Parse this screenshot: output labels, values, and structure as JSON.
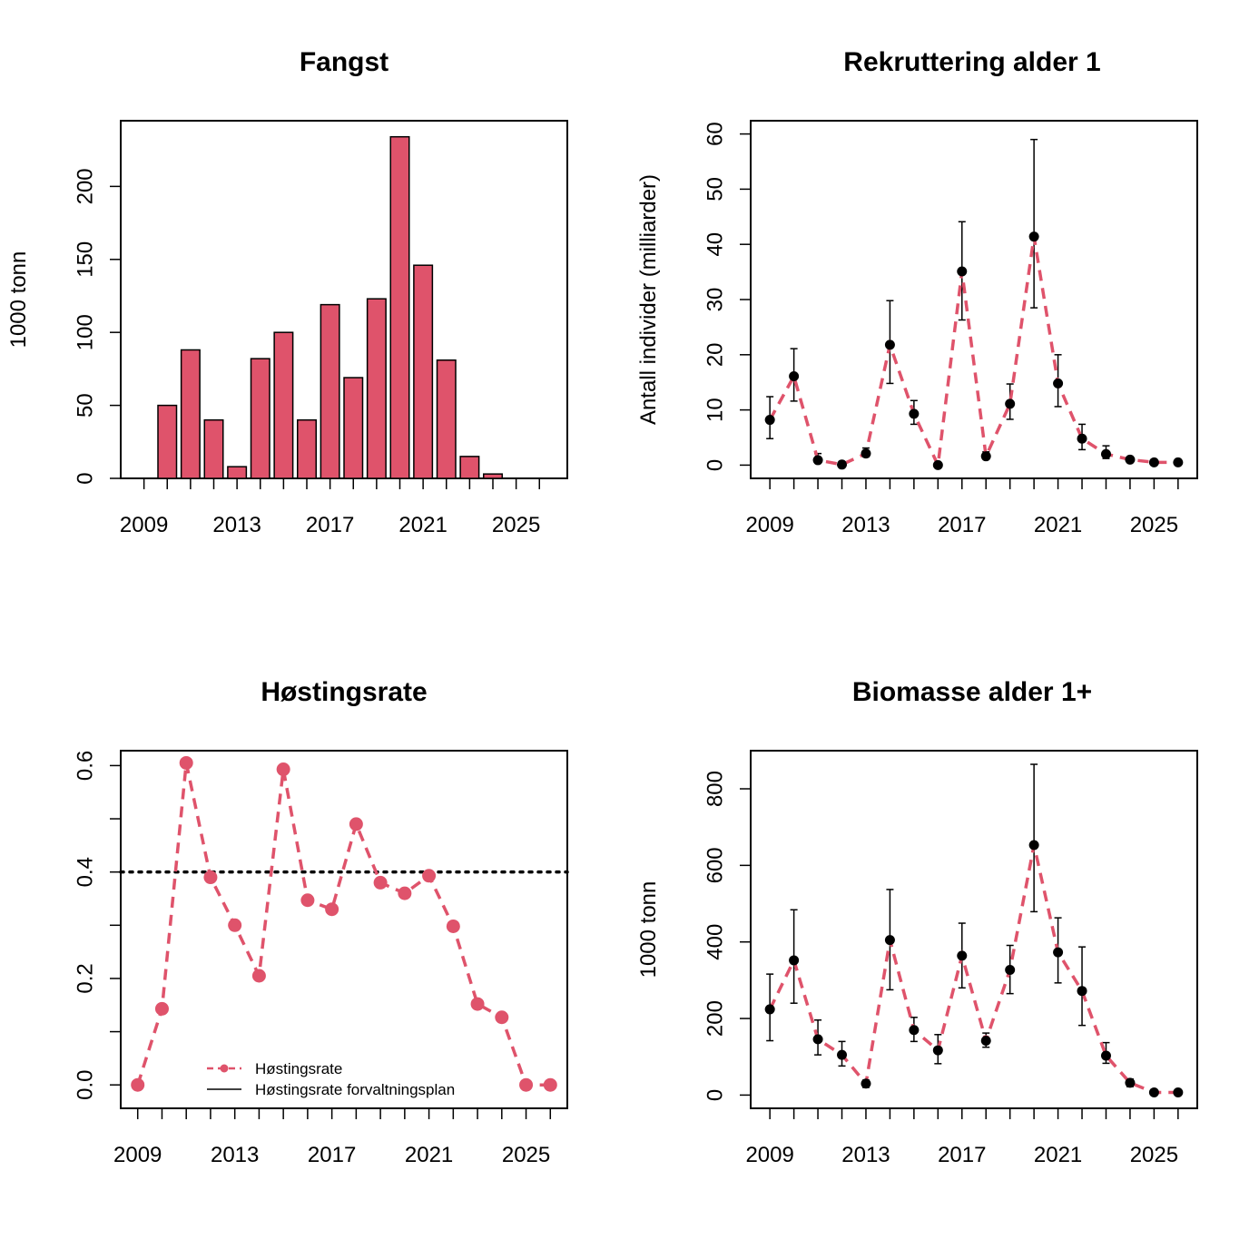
{
  "chart_data": [
    {
      "id": "fangst",
      "type": "bar",
      "title": "Fangst",
      "xlabel": "",
      "ylabel": "1000 tonn",
      "x": [
        2009,
        2010,
        2011,
        2012,
        2013,
        2014,
        2015,
        2016,
        2017,
        2018,
        2019,
        2020,
        2021,
        2022,
        2023,
        2024,
        2025,
        2026
      ],
      "values": [
        0,
        50,
        88,
        40,
        8,
        82,
        100,
        40,
        119,
        69,
        123,
        234,
        146,
        81,
        15,
        3,
        0,
        0
      ],
      "xlim": [
        2008.0,
        2027.2
      ],
      "ylim": [
        0,
        245
      ],
      "xticks": [
        "2009",
        "2013",
        "2017",
        "2021",
        "2025"
      ],
      "yticks": [
        "0",
        "50",
        "100",
        "150",
        "200"
      ],
      "bar_color": "#DF536B",
      "grid": false
    },
    {
      "id": "rekruttering",
      "type": "line",
      "title": "Rekruttering alder 1",
      "xlabel": "",
      "ylabel": "Antall individer (milliarder)",
      "x": [
        2009,
        2010,
        2011,
        2012,
        2013,
        2014,
        2015,
        2016,
        2017,
        2018,
        2019,
        2020,
        2021,
        2022,
        2023,
        2024,
        2025,
        2026
      ],
      "values": [
        8.2,
        16.1,
        0.9,
        0.1,
        2.1,
        21.8,
        9.3,
        0.0,
        35.1,
        1.6,
        11.1,
        41.4,
        14.8,
        4.8,
        2.0,
        1.0,
        0.5,
        0.5
      ],
      "lower": [
        4.8,
        11.6,
        0.5,
        0.0,
        1.5,
        14.8,
        7.4,
        0.0,
        26.3,
        1.1,
        8.3,
        28.5,
        10.6,
        2.8,
        1.2,
        0.7,
        0.3,
        0.3
      ],
      "upper": [
        12.4,
        21.1,
        2.1,
        0.3,
        3.1,
        29.8,
        11.7,
        0.1,
        44.1,
        2.4,
        14.7,
        59.0,
        20.0,
        7.4,
        3.5,
        1.5,
        0.8,
        0.8
      ],
      "xlim": [
        2008.2,
        2026.8
      ],
      "ylim": [
        -2.4,
        62.4
      ],
      "xticks": [
        "2009",
        "2013",
        "2017",
        "2021",
        "2025"
      ],
      "yticks": [
        "0",
        "10",
        "20",
        "30",
        "40",
        "50",
        "60"
      ],
      "line_color": "#DF536B",
      "point_color": "#000000",
      "grid": false
    },
    {
      "id": "hostingsrate",
      "type": "line",
      "title": "Høstingsrate",
      "xlabel": "",
      "ylabel": "",
      "x": [
        2009,
        2010,
        2011,
        2012,
        2013,
        2014,
        2015,
        2016,
        2017,
        2018,
        2019,
        2020,
        2021,
        2022,
        2023,
        2024,
        2025,
        2026
      ],
      "values": [
        0.0,
        0.143,
        0.605,
        0.39,
        0.3,
        0.205,
        0.593,
        0.347,
        0.33,
        0.49,
        0.38,
        0.36,
        0.393,
        0.298,
        0.152,
        0.127,
        0.0,
        0.0
      ],
      "reference_line": 0.4,
      "xlim": [
        2008.3,
        2026.7
      ],
      "ylim": [
        -0.044,
        0.628
      ],
      "xticks": [
        "2009",
        "2013",
        "2017",
        "2021",
        "2025"
      ],
      "yticks": [
        "0.0",
        "0.2",
        "0.4",
        "0.6"
      ],
      "legend": {
        "position": "bottom",
        "entries": [
          "Høstingsrate",
          "Høstingsrate forvaltningsplan"
        ]
      },
      "line_color": "#DF536B",
      "grid": false
    },
    {
      "id": "biomasse",
      "type": "line",
      "title": "Biomasse alder 1+",
      "xlabel": "",
      "ylabel": "1000 tonn",
      "x": [
        2009,
        2010,
        2011,
        2012,
        2013,
        2014,
        2015,
        2016,
        2017,
        2018,
        2019,
        2020,
        2021,
        2022,
        2023,
        2024,
        2025,
        2026
      ],
      "values": [
        224,
        352,
        146,
        105,
        30,
        405,
        170,
        117,
        364,
        142,
        327,
        653,
        373,
        272,
        103,
        32,
        7,
        7
      ],
      "lower": [
        142,
        240,
        105,
        76,
        20,
        275,
        140,
        82,
        280,
        125,
        265,
        479,
        293,
        182,
        83,
        22,
        4,
        4
      ],
      "upper": [
        316,
        484,
        196,
        140,
        39,
        537,
        203,
        158,
        449,
        162,
        391,
        864,
        463,
        387,
        137,
        42,
        10,
        10
      ],
      "xlim": [
        2008.2,
        2026.8
      ],
      "ylim": [
        -34.6,
        899.6
      ],
      "xticks": [
        "2009",
        "2013",
        "2017",
        "2021",
        "2025"
      ],
      "yticks": [
        "0",
        "200",
        "400",
        "600",
        "800"
      ],
      "line_color": "#DF536B",
      "point_color": "#000000",
      "grid": false
    }
  ]
}
